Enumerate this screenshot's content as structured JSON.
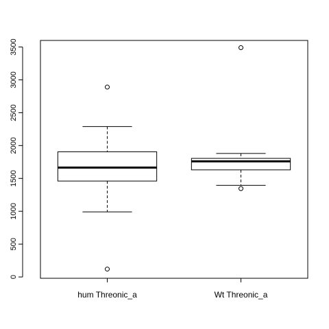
{
  "chart_data": {
    "type": "box",
    "title": "",
    "xlabel": "",
    "ylabel": "",
    "ylim": [
      -20,
      3600
    ],
    "yticks": [
      0,
      500,
      1000,
      1500,
      2000,
      2500,
      3000,
      3500
    ],
    "ytick_labels": [
      "0",
      "500",
      "1000",
      "1500",
      "2000",
      "2500",
      "3000",
      "3500"
    ],
    "grid": false,
    "categories": [
      "hum Threonic_a",
      "Wt Threonic_a"
    ],
    "boxes": [
      {
        "name": "hum Threonic_a",
        "whisker_low": 990,
        "q1": 1460,
        "median": 1665,
        "q3": 1905,
        "whisker_high": 2290,
        "outliers": [
          2890,
          120
        ]
      },
      {
        "name": "Wt Threonic_a",
        "whisker_low": 1395,
        "q1": 1630,
        "median": 1760,
        "q3": 1805,
        "whisker_high": 1880,
        "outliers": [
          3490,
          1345
        ]
      }
    ]
  }
}
